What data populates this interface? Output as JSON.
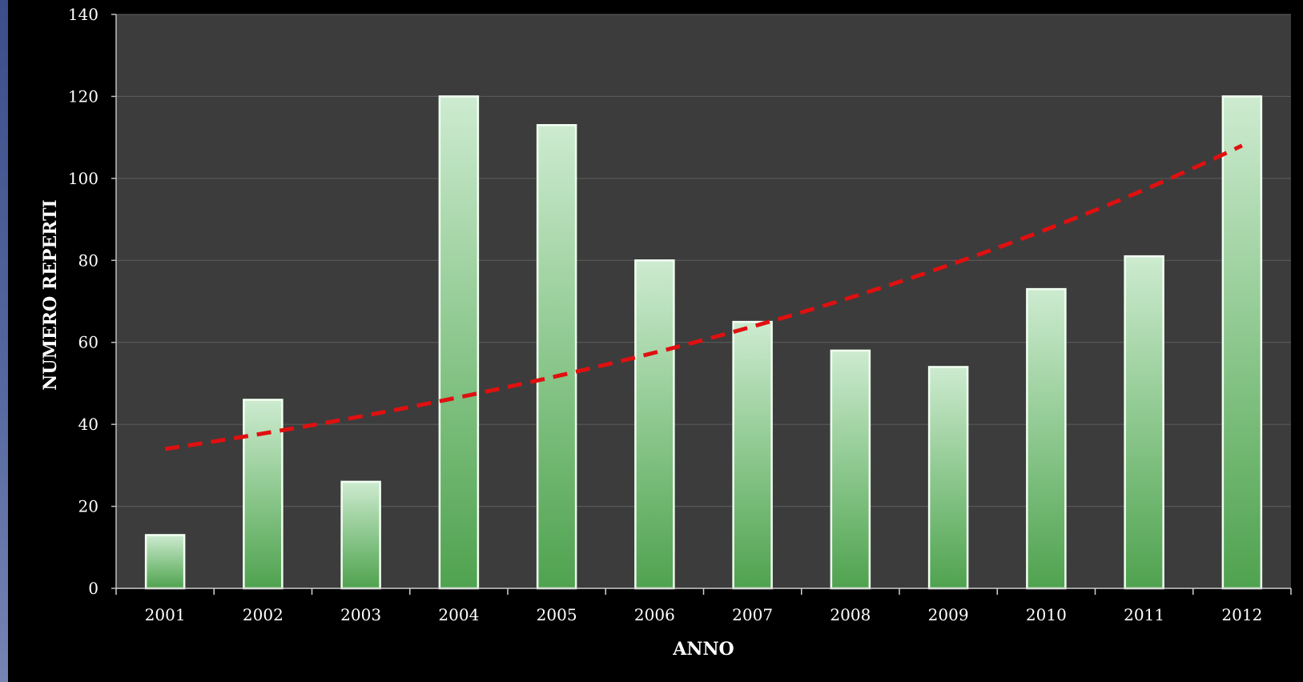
{
  "chart_data": {
    "type": "bar",
    "categories": [
      "2001",
      "2002",
      "2003",
      "2004",
      "2005",
      "2006",
      "2007",
      "2008",
      "2009",
      "2010",
      "2011",
      "2012"
    ],
    "values": [
      13,
      46,
      26,
      120,
      113,
      80,
      65,
      58,
      54,
      73,
      81,
      120
    ],
    "trendline": {
      "type": "exponential",
      "style": "dashed",
      "color": "#e01010",
      "start_value": 34,
      "end_value": 108
    },
    "xlabel": "ANNO",
    "ylabel": "NUMERO REPERTI",
    "ylim": [
      0,
      140
    ],
    "yticks": [
      "0",
      "20",
      "40",
      "60",
      "80",
      "100",
      "120",
      "140"
    ],
    "grid": true,
    "legend": "none",
    "colors": {
      "page_background": "#000000",
      "plot_background": "#3c3c3c",
      "gridline": "#5e5e5e",
      "bar_top": "#cdebd0",
      "bar_bottom": "#4fa24f",
      "bar_outline": "#f2fff2",
      "trendline": "#e01010"
    }
  }
}
